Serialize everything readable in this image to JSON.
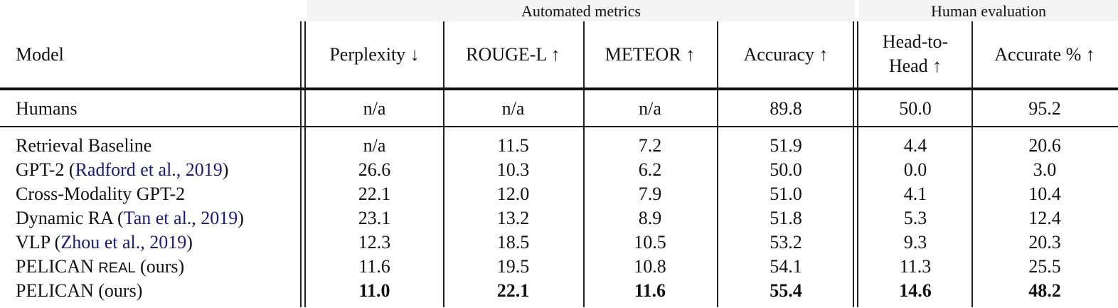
{
  "groups": {
    "automated": "Automated metrics",
    "human": "Human evaluation"
  },
  "headers": {
    "model": "Model",
    "perplexity": "Perplexity ↓",
    "rouge": "ROUGE-L ↑",
    "meteor": "METEOR ↑",
    "accuracy": "Accuracy ↑",
    "h2h_line1": "Head-to-",
    "h2h_line2": "Head ↑",
    "accurate": "Accurate % ↑"
  },
  "humans": {
    "model": "Humans",
    "values": [
      "n/a",
      "n/a",
      "n/a",
      "89.8",
      "50.0",
      "95.2"
    ]
  },
  "rows": [
    {
      "model": "Retrieval Baseline",
      "cite": "",
      "suffix": "",
      "values": [
        "n/a",
        "11.5",
        "7.2",
        "51.9",
        "4.4",
        "20.6"
      ]
    },
    {
      "model": "GPT-2 (",
      "cite": "Radford et al., 2019",
      "suffix": ")",
      "values": [
        "26.6",
        "10.3",
        "6.2",
        "50.0",
        "0.0",
        "3.0"
      ]
    },
    {
      "model": "Cross-Modality GPT-2",
      "cite": "",
      "suffix": "",
      "values": [
        "22.1",
        "12.0",
        "7.9",
        "51.0",
        "4.1",
        "10.4"
      ]
    },
    {
      "model": "Dynamic RA (",
      "cite": "Tan et al., 2019",
      "suffix": ")",
      "values": [
        "23.1",
        "13.2",
        "8.9",
        "51.8",
        "5.3",
        "12.4"
      ]
    },
    {
      "model": "VLP (",
      "cite": "Zhou et al., 2019",
      "suffix": ")",
      "values": [
        "12.3",
        "18.5",
        "10.5",
        "53.2",
        "9.3",
        "20.3"
      ]
    },
    {
      "model": "PELICAN ",
      "sc": "REAL",
      "cite": "",
      "suffix": " (ours)",
      "values": [
        "11.6",
        "19.5",
        "10.8",
        "54.1",
        "11.3",
        "25.5"
      ]
    },
    {
      "model": "PELICAN (ours)",
      "cite": "",
      "suffix": "",
      "bold": true,
      "values": [
        "11.0",
        "22.1",
        "11.6",
        "55.4",
        "14.6",
        "48.2"
      ]
    }
  ]
}
